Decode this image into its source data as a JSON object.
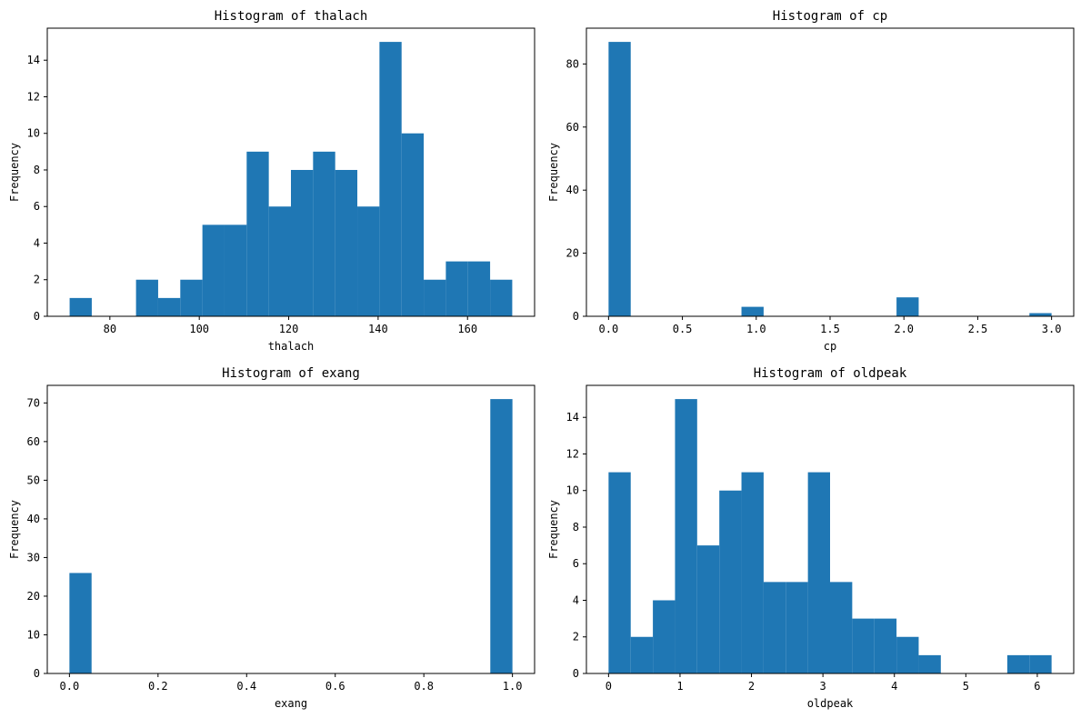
{
  "figure": {
    "bar_color": "#1f77b4"
  },
  "chart_data": [
    {
      "type": "bar",
      "title": "Histogram of thalach",
      "xlabel": "thalach",
      "ylabel": "Frequency",
      "xlim": [
        66,
        175
      ],
      "ylim": [
        0,
        15.75
      ],
      "xticks": [
        80,
        100,
        120,
        140,
        160
      ],
      "xtick_labels": [
        "80",
        "100",
        "120",
        "140",
        "160"
      ],
      "yticks": [
        0,
        2,
        4,
        6,
        8,
        10,
        12,
        14
      ],
      "ytick_labels": [
        "0",
        "2",
        "4",
        "6",
        "8",
        "10",
        "12",
        "14"
      ],
      "bin_start": 71,
      "bin_width": 4.95,
      "values": [
        1,
        0,
        0,
        2,
        1,
        2,
        5,
        5,
        9,
        6,
        8,
        9,
        8,
        6,
        15,
        10,
        2,
        3,
        3,
        2
      ]
    },
    {
      "type": "bar",
      "title": "Histogram of cp",
      "xlabel": "cp",
      "ylabel": "Frequency",
      "xlim": [
        -0.15,
        3.15
      ],
      "ylim": [
        0,
        91.35
      ],
      "xticks": [
        0,
        0.5,
        1,
        1.5,
        2,
        2.5,
        3
      ],
      "xtick_labels": [
        "0.0",
        "0.5",
        "1.0",
        "1.5",
        "2.0",
        "2.5",
        "3.0"
      ],
      "yticks": [
        0,
        20,
        40,
        60,
        80
      ],
      "ytick_labels": [
        "0",
        "20",
        "40",
        "60",
        "80"
      ],
      "bin_start": 0,
      "bin_width": 0.15,
      "values": [
        87,
        0,
        0,
        0,
        0,
        0,
        3,
        0,
        0,
        0,
        0,
        0,
        0,
        6,
        0,
        0,
        0,
        0,
        0,
        1
      ]
    },
    {
      "type": "bar",
      "title": "Histogram of exang",
      "xlabel": "exang",
      "ylabel": "Frequency",
      "xlim": [
        -0.05,
        1.05
      ],
      "ylim": [
        0,
        74.55
      ],
      "xticks": [
        0,
        0.2,
        0.4,
        0.6,
        0.8,
        1.0
      ],
      "xtick_labels": [
        "0.0",
        "0.2",
        "0.4",
        "0.6",
        "0.8",
        "1.0"
      ],
      "yticks": [
        0,
        10,
        20,
        30,
        40,
        50,
        60,
        70
      ],
      "ytick_labels": [
        "0",
        "10",
        "20",
        "30",
        "40",
        "50",
        "60",
        "70"
      ],
      "bin_start": 0,
      "bin_width": 0.05,
      "values": [
        26,
        0,
        0,
        0,
        0,
        0,
        0,
        0,
        0,
        0,
        0,
        0,
        0,
        0,
        0,
        0,
        0,
        0,
        0,
        71
      ]
    },
    {
      "type": "bar",
      "title": "Histogram of oldpeak",
      "xlabel": "oldpeak",
      "ylabel": "Frequency",
      "xlim": [
        -0.31,
        6.51
      ],
      "ylim": [
        0,
        15.75
      ],
      "xticks": [
        0,
        1,
        2,
        3,
        4,
        5,
        6
      ],
      "xtick_labels": [
        "0",
        "1",
        "2",
        "3",
        "4",
        "5",
        "6"
      ],
      "yticks": [
        0,
        2,
        4,
        6,
        8,
        10,
        12,
        14
      ],
      "ytick_labels": [
        "0",
        "2",
        "4",
        "6",
        "8",
        "10",
        "12",
        "14"
      ],
      "bin_start": 0,
      "bin_width": 0.31,
      "values": [
        11,
        2,
        4,
        15,
        7,
        10,
        11,
        5,
        5,
        11,
        5,
        3,
        3,
        2,
        1,
        0,
        0,
        0,
        1,
        1
      ]
    }
  ]
}
